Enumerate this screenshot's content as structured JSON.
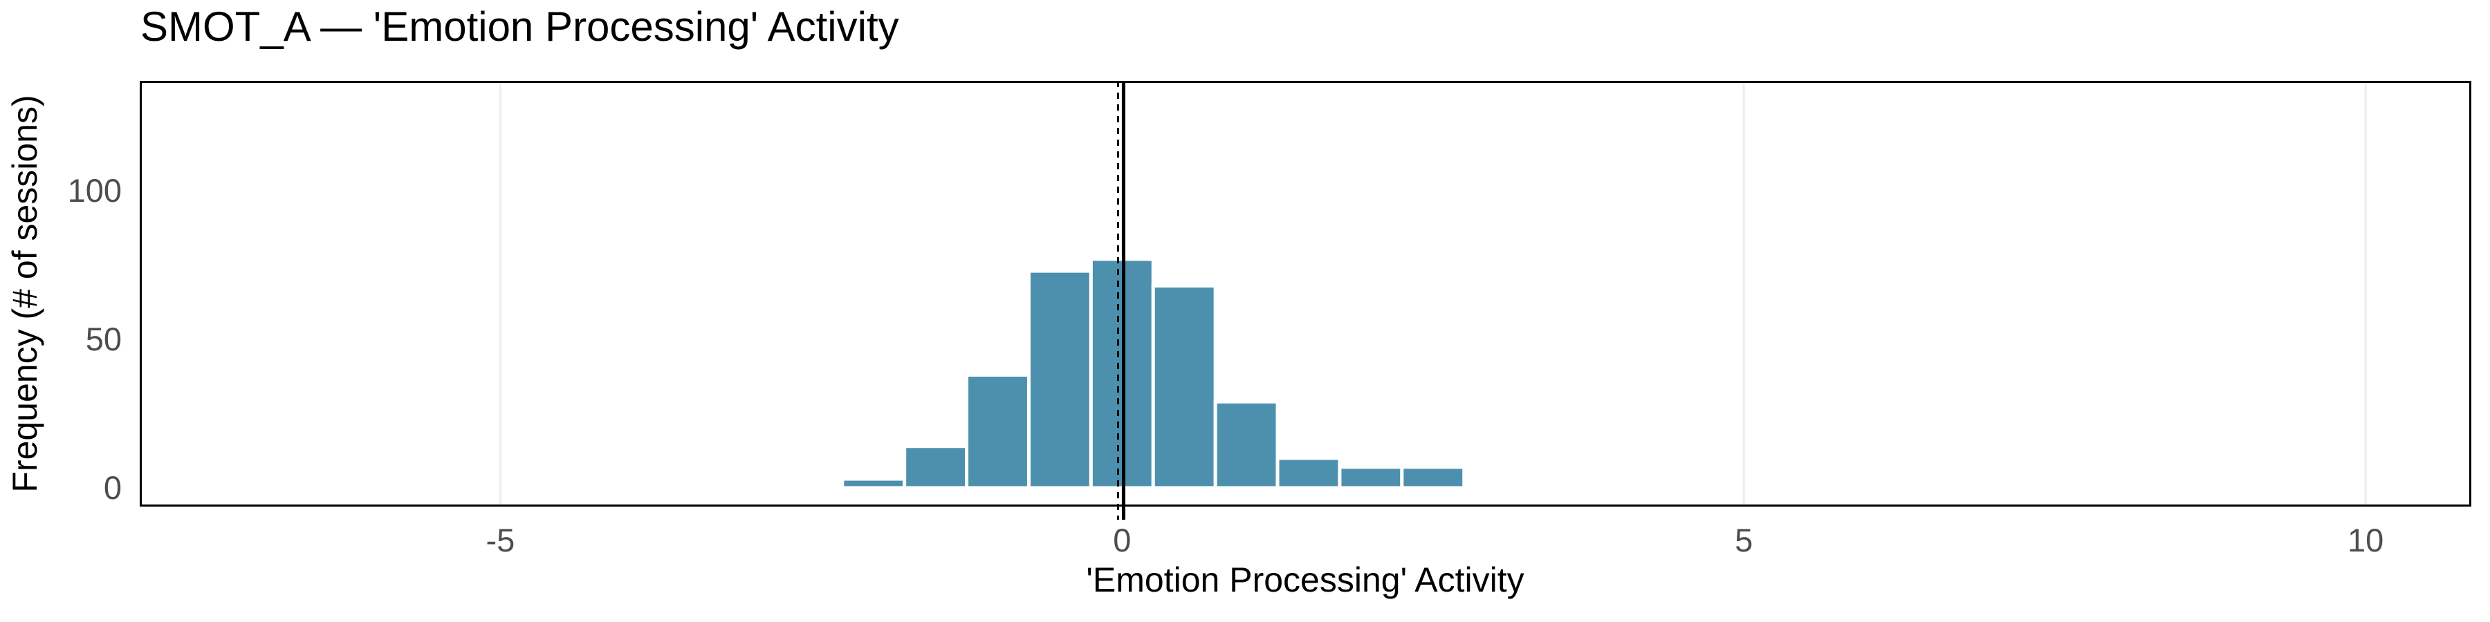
{
  "title": "SMOT_A — 'Emotion Processing' Activity",
  "chart_data": {
    "type": "bar",
    "subtype": "histogram",
    "title": "SMOT_A — 'Emotion Processing' Activity",
    "xlabel": "'Emotion Processing' Activity",
    "ylabel": "Frequency (# of sessions)",
    "bin_width": 0.5,
    "bin_centers": [
      -2.0,
      -1.5,
      -1.0,
      -0.5,
      0.0,
      0.5,
      1.0,
      1.5,
      2.0,
      2.5
    ],
    "values": [
      3,
      14,
      38,
      73,
      77,
      68,
      29,
      10,
      7,
      7
    ],
    "x_ticks": [
      -5,
      0,
      5,
      10
    ],
    "x_tick_labels": [
      "-5",
      "0",
      "5",
      "10"
    ],
    "y_ticks": [
      0,
      50,
      100
    ],
    "y_tick_labels": [
      "0",
      "50",
      "100"
    ],
    "x_range": [
      -7.9,
      10.85
    ],
    "y_range": [
      -6.3,
      137
    ],
    "grid": "vertical-major-only",
    "legend": "none",
    "reference_lines": [
      {
        "x": -0.03,
        "style": "dashed",
        "color": "#000000"
      },
      {
        "x": 0.01,
        "style": "solid",
        "color": "#000000"
      }
    ],
    "colors": {
      "bar_fill": "#4C90AE",
      "bar_outline": "#FFFFFF",
      "grid": "#EDEDED",
      "tick_label": "#4D4D4D",
      "axis_title": "#000000",
      "panel_border": "#000000",
      "background": "#FFFFFF"
    }
  }
}
